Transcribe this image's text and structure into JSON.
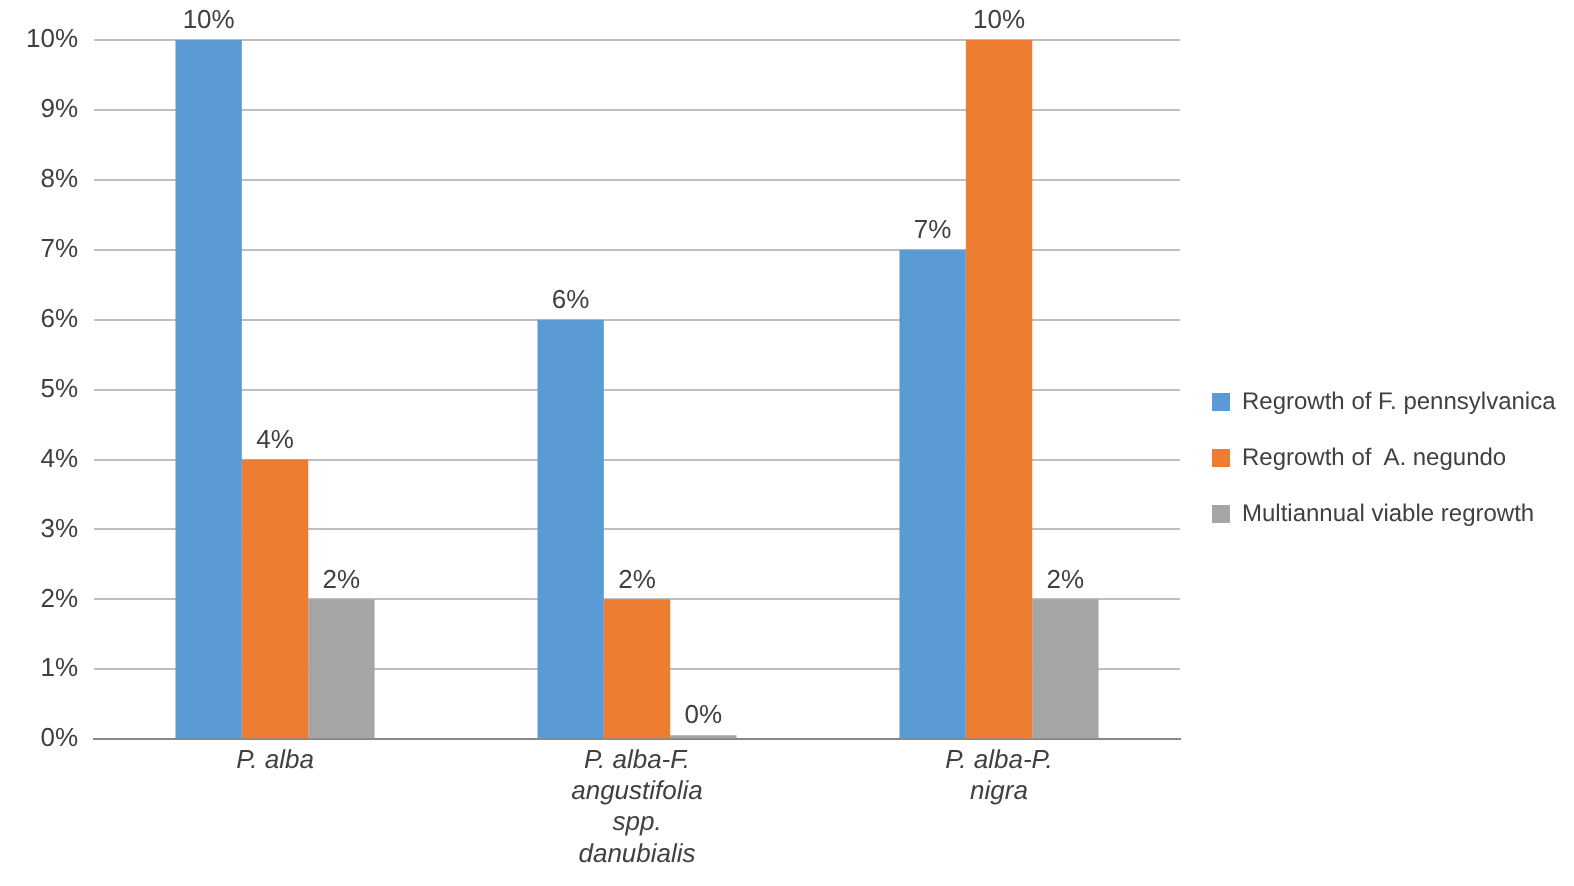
{
  "chart_data": {
    "type": "bar",
    "categories": [
      "P. alba",
      "P. alba-F. angustifolia spp. danubialis",
      "P. alba-P. nigra"
    ],
    "series": [
      {
        "name": "Regrowth of F. pennsylvanica",
        "color": "#5b9bd5",
        "values": [
          10,
          6,
          7
        ],
        "value_labels": [
          "10%",
          "6%",
          "7%"
        ]
      },
      {
        "name": "Regrowth of  A. negundo",
        "color": "#ed7d31",
        "values": [
          4,
          2,
          10
        ],
        "value_labels": [
          "4%",
          "2%",
          "10%"
        ]
      },
      {
        "name": "Multiannual viable regrowth",
        "color": "#a5a5a5",
        "values": [
          2,
          0,
          2
        ],
        "value_labels": [
          "2%",
          "0%",
          "2%"
        ]
      }
    ],
    "ylim": [
      0,
      10
    ],
    "yticks": [
      {
        "value": 0,
        "label": "0%"
      },
      {
        "value": 1,
        "label": "1%"
      },
      {
        "value": 2,
        "label": "2%"
      },
      {
        "value": 3,
        "label": "3%"
      },
      {
        "value": 4,
        "label": "4%"
      },
      {
        "value": 5,
        "label": "5%"
      },
      {
        "value": 6,
        "label": "6%"
      },
      {
        "value": 7,
        "label": "7%"
      },
      {
        "value": 8,
        "label": "8%"
      },
      {
        "value": 9,
        "label": "9%"
      },
      {
        "value": 10,
        "label": "10%"
      }
    ],
    "grid": "y",
    "legend": "right"
  }
}
